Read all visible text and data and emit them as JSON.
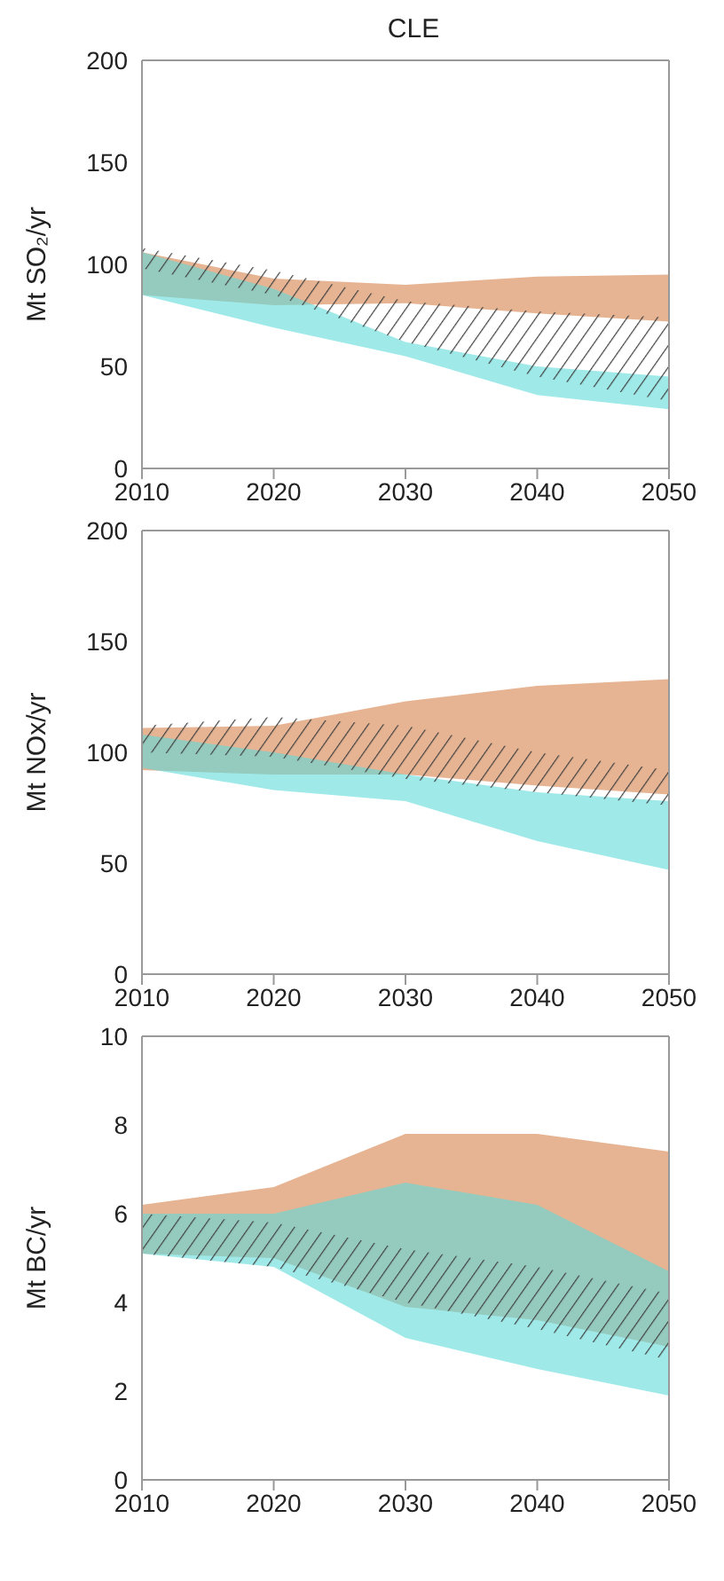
{
  "chart_data": [
    {
      "type": "area",
      "title": "CLE",
      "ylabel": "Mt SO₂/yr",
      "x": [
        2010,
        2020,
        2030,
        2040,
        2050
      ],
      "xlim": [
        2010,
        2050
      ],
      "xticks": [
        2010,
        2020,
        2030,
        2040,
        2050
      ],
      "ylim": [
        0,
        200
      ],
      "yticks": [
        0,
        50,
        100,
        150,
        200
      ],
      "series": [
        {
          "color": "#e6b493",
          "values": [
            null,
            null,
            null,
            null,
            null
          ],
          "lower": [
            85,
            80,
            81,
            76,
            72
          ],
          "upper": [
            106,
            93,
            90,
            94,
            95
          ]
        },
        {
          "color": "#5fdada",
          "values": [
            null,
            null,
            null,
            null,
            null
          ],
          "lower": [
            85,
            69,
            55,
            36,
            29
          ],
          "upper": [
            106,
            88,
            62,
            50,
            45
          ]
        },
        {
          "line_style": "dashed",
          "color": "#404040",
          "values": [
            null,
            null,
            null,
            null,
            null
          ],
          "lower": [
            98,
            85,
            62,
            45,
            33
          ],
          "upper": [
            108,
            97,
            82,
            77,
            74
          ]
        }
      ]
    },
    {
      "type": "area",
      "ylabel": "Mt NOx/yr",
      "x": [
        2010,
        2020,
        2030,
        2040,
        2050
      ],
      "xlim": [
        2010,
        2050
      ],
      "xticks": [
        2010,
        2020,
        2030,
        2040,
        2050
      ],
      "ylim": [
        0,
        200
      ],
      "yticks": [
        0,
        50,
        100,
        150,
        200
      ],
      "series": [
        {
          "color": "#e6b493",
          "values": [
            null,
            null,
            null,
            null,
            null
          ],
          "lower": [
            92,
            90,
            90,
            85,
            81
          ],
          "upper": [
            111,
            112,
            123,
            130,
            133
          ]
        },
        {
          "color": "#5fdada",
          "values": [
            null,
            null,
            null,
            null,
            null
          ],
          "lower": [
            93,
            83,
            78,
            60,
            47
          ],
          "upper": [
            108,
            100,
            90,
            82,
            78
          ]
        },
        {
          "line_style": "dashed",
          "color": "#404040",
          "values": [
            null,
            null,
            null,
            null,
            null
          ],
          "lower": [
            100,
            98,
            88,
            82,
            76
          ],
          "upper": [
            112,
            116,
            112,
            100,
            92
          ]
        }
      ]
    },
    {
      "type": "area",
      "ylabel": "Mt BC/yr",
      "x": [
        2010,
        2020,
        2030,
        2040,
        2050
      ],
      "xlim": [
        2010,
        2050
      ],
      "xticks": [
        2010,
        2020,
        2030,
        2040,
        2050
      ],
      "ylim": [
        0,
        10
      ],
      "yticks": [
        0,
        2,
        4,
        6,
        8,
        10
      ],
      "series": [
        {
          "color": "#e6b493",
          "values": [
            null,
            null,
            null,
            null,
            null
          ],
          "lower": [
            5.1,
            5.0,
            3.9,
            3.6,
            3.0
          ],
          "upper": [
            6.2,
            6.6,
            7.8,
            7.8,
            7.4
          ]
        },
        {
          "color": "#5fdada",
          "values": [
            null,
            null,
            null,
            null,
            null
          ],
          "lower": [
            5.1,
            4.8,
            3.2,
            2.5,
            1.9
          ],
          "upper": [
            6.0,
            6.0,
            6.7,
            6.2,
            4.7
          ]
        },
        {
          "line_style": "dashed",
          "color": "#404040",
          "values": [
            null,
            null,
            null,
            null,
            null
          ],
          "lower": [
            5.1,
            4.8,
            4.0,
            3.4,
            2.7
          ],
          "upper": [
            6.0,
            5.8,
            5.2,
            4.8,
            4.2
          ]
        }
      ]
    }
  ]
}
